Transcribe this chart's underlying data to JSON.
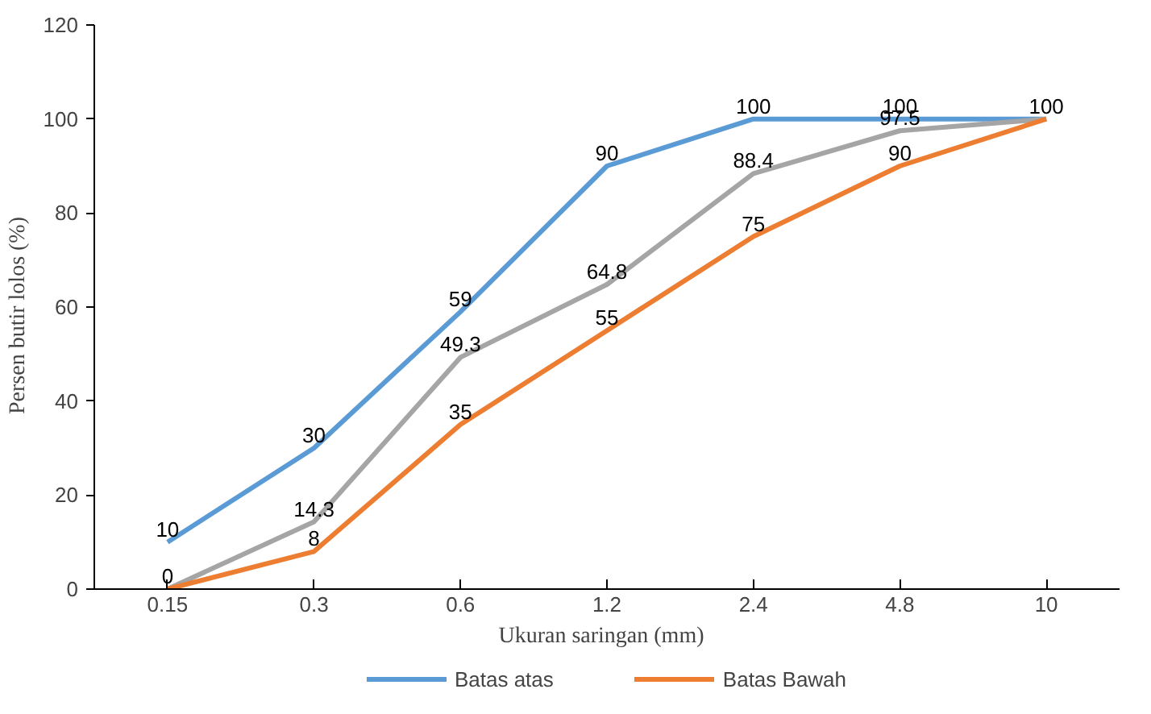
{
  "chart_data": {
    "type": "line",
    "xlabel": "Ukuran saringan   (mm)",
    "ylabel": "Persen butir lolos    (%)",
    "categories": [
      "0.15",
      "0.3",
      "0.6",
      "1.2",
      "2.4",
      "4.8",
      "10"
    ],
    "ylim": [
      0,
      120
    ],
    "yticks": [
      0,
      20,
      40,
      60,
      80,
      100,
      120
    ],
    "legend": "bottom",
    "line_style": "solid",
    "series": [
      {
        "name": "Batas atas",
        "color": "#5b9bd5",
        "values": [
          10,
          30,
          59,
          90,
          100,
          100,
          100
        ],
        "value_labels": [
          "10",
          "30",
          "59",
          "90",
          "100",
          "100",
          "100"
        ]
      },
      {
        "color": "#a5a5a5",
        "values": [
          0,
          14.3,
          49.3,
          64.8,
          88.4,
          97.5,
          100
        ],
        "value_labels": [
          null,
          "14.3",
          "49.3",
          "64.8",
          "88.4",
          "97.5",
          null
        ]
      },
      {
        "name": "Batas Bawah",
        "color": "#ed7d31",
        "values": [
          0,
          8,
          35,
          55,
          75,
          90,
          100
        ],
        "value_labels": [
          "0",
          "8",
          "35",
          "55",
          "75",
          "90",
          null
        ]
      }
    ]
  }
}
